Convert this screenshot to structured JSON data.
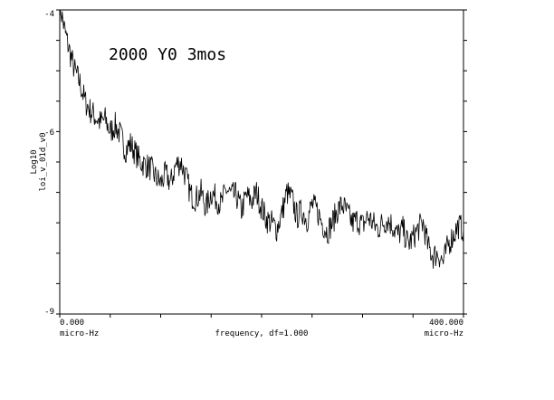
{
  "chart_data": {
    "type": "line",
    "title": "",
    "annotation": "2000 Y0 3mos",
    "ylabel_line1": "Log10",
    "ylabel_line2": "loi_v_01d_v0",
    "xlabel": "frequency, df=1.000",
    "x_tick_left": "0.000",
    "x_tick_right": "400.000",
    "x_unit_left": "micro-Hz",
    "x_unit_right": "micro-Hz",
    "y_tick_top": "-4",
    "y_tick_mid": "-6",
    "y_tick_bottom": "-9",
    "xlim": [
      0,
      400
    ],
    "ylim": [
      -9,
      -4
    ],
    "grid": false,
    "series": [
      {
        "color": "#000000",
        "x": [
          0,
          5,
          10,
          15,
          20,
          25,
          30,
          35,
          40,
          45,
          50,
          55,
          60,
          65,
          70,
          75,
          80,
          85,
          90,
          95,
          100,
          105,
          110,
          115,
          120,
          125,
          130,
          135,
          140,
          145,
          150,
          155,
          160,
          165,
          170,
          175,
          180,
          185,
          190,
          195,
          200,
          205,
          210,
          215,
          220,
          225,
          230,
          235,
          240,
          245,
          250,
          255,
          260,
          265,
          270,
          275,
          280,
          285,
          290,
          295,
          300,
          305,
          310,
          315,
          320,
          325,
          330,
          335,
          340,
          345,
          350,
          355,
          360,
          365,
          370,
          375,
          380,
          385,
          390,
          395,
          400
        ],
        "y": [
          -3.9,
          -4.35,
          -4.7,
          -5.0,
          -5.2,
          -5.5,
          -5.65,
          -5.75,
          -5.85,
          -5.8,
          -6.0,
          -5.9,
          -6.05,
          -6.3,
          -6.2,
          -6.35,
          -6.5,
          -6.55,
          -6.6,
          -6.75,
          -6.85,
          -6.7,
          -6.85,
          -6.55,
          -6.5,
          -6.75,
          -7.05,
          -7.1,
          -7.0,
          -7.25,
          -7.0,
          -7.1,
          -7.2,
          -6.95,
          -7.05,
          -7.05,
          -7.3,
          -7.05,
          -7.15,
          -7.0,
          -7.25,
          -7.45,
          -7.5,
          -7.6,
          -7.35,
          -7.0,
          -7.1,
          -7.4,
          -7.3,
          -7.45,
          -7.2,
          -7.3,
          -7.5,
          -7.65,
          -7.5,
          -7.3,
          -7.2,
          -7.35,
          -7.5,
          -7.45,
          -7.55,
          -7.4,
          -7.5,
          -7.6,
          -7.5,
          -7.45,
          -7.55,
          -7.7,
          -7.6,
          -7.85,
          -7.75,
          -7.6,
          -7.5,
          -7.9,
          -8.05,
          -8.0,
          -8.15,
          -7.85,
          -7.7,
          -7.55,
          -7.6
        ]
      }
    ]
  }
}
